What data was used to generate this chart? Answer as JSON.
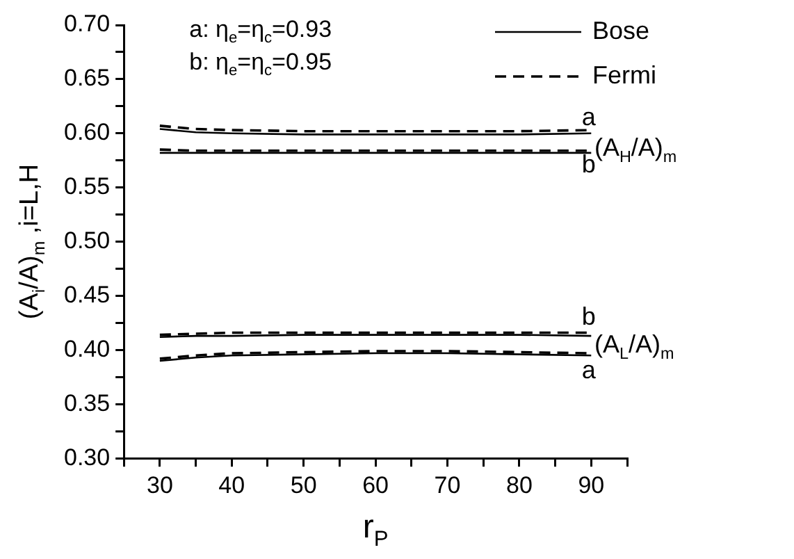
{
  "chart_data": {
    "type": "line",
    "xlabel": "r$_{P}$",
    "ylabel": "(A$_{i}$/A)$_{m}$ ,i=L,H",
    "x": [
      30,
      35,
      40,
      50,
      60,
      70,
      80,
      90
    ],
    "xlim": [
      25,
      95
    ],
    "xticks": [
      {
        "value": 25,
        "label": null
      },
      30,
      {
        "value": 35,
        "label": null
      },
      40,
      {
        "value": 45,
        "label": null
      },
      50,
      {
        "value": 55,
        "label": null
      },
      60,
      {
        "value": 65,
        "label": null
      },
      70,
      {
        "value": 75,
        "label": null
      },
      80,
      {
        "value": 85,
        "label": null
      },
      90,
      {
        "value": 95,
        "label": null
      }
    ],
    "ylim": [
      0.3,
      0.7
    ],
    "yticks": [
      {
        "value": 0.3,
        "label": "0.30"
      },
      {
        "value": 0.325,
        "label": null
      },
      {
        "value": 0.35,
        "label": "0.35"
      },
      {
        "value": 0.375,
        "label": null
      },
      {
        "value": 0.4,
        "label": "0.40"
      },
      {
        "value": 0.425,
        "label": null
      },
      {
        "value": 0.45,
        "label": "0.45"
      },
      {
        "value": 0.475,
        "label": null
      },
      {
        "value": 0.5,
        "label": "0.50"
      },
      {
        "value": 0.525,
        "label": null
      },
      {
        "value": 0.55,
        "label": "0.55"
      },
      {
        "value": 0.575,
        "label": null
      },
      {
        "value": 0.6,
        "label": "0.60"
      },
      {
        "value": 0.625,
        "label": null
      },
      {
        "value": 0.65,
        "label": "0.65"
      },
      {
        "value": 0.675,
        "label": null
      },
      {
        "value": 0.7,
        "label": "0.70"
      }
    ],
    "grid": false,
    "legend": "top right",
    "marker": "none",
    "series": [
      {
        "name": "Bose",
        "color": "#000000",
        "line_style": "solid",
        "values": [
          0.582,
          0.582,
          0.582,
          0.582,
          0.582,
          0.582,
          0.582,
          0.582
        ]
      },
      {
        "name": "Fermi",
        "color": "#000000",
        "line_style": "dashed",
        "values": [
          0.585,
          0.584,
          0.584,
          0.584,
          0.584,
          0.584,
          0.584,
          0.584
        ]
      },
      {
        "color": "#000000",
        "line_style": "solid",
        "values": [
          0.604,
          0.601,
          0.6,
          0.599,
          0.599,
          0.599,
          0.599,
          0.6
        ]
      },
      {
        "color": "#000000",
        "line_style": "dashed",
        "values": [
          0.607,
          0.604,
          0.603,
          0.602,
          0.602,
          0.602,
          0.602,
          0.603
        ]
      },
      {
        "color": "#000000",
        "line_style": "solid",
        "values": [
          0.412,
          0.413,
          0.413,
          0.414,
          0.414,
          0.414,
          0.414,
          0.413
        ]
      },
      {
        "color": "#000000",
        "line_style": "dashed",
        "values": [
          0.414,
          0.415,
          0.416,
          0.416,
          0.416,
          0.416,
          0.416,
          0.416
        ]
      },
      {
        "color": "#000000",
        "line_style": "solid",
        "values": [
          0.39,
          0.393,
          0.395,
          0.396,
          0.397,
          0.397,
          0.396,
          0.395
        ]
      },
      {
        "color": "#000000",
        "line_style": "dashed",
        "values": [
          0.392,
          0.395,
          0.397,
          0.398,
          0.399,
          0.399,
          0.398,
          0.397
        ]
      }
    ],
    "annotations": [
      "a: η$_{e}$=η$_{c}$=0.93",
      "b: η$_{e}$=η$_{c}$=0.95",
      "a",
      "(A$_{H}$/A)$_{m}$",
      "b",
      "b",
      "(A$_{L}$/A)$_{m}$",
      "a"
    ]
  }
}
